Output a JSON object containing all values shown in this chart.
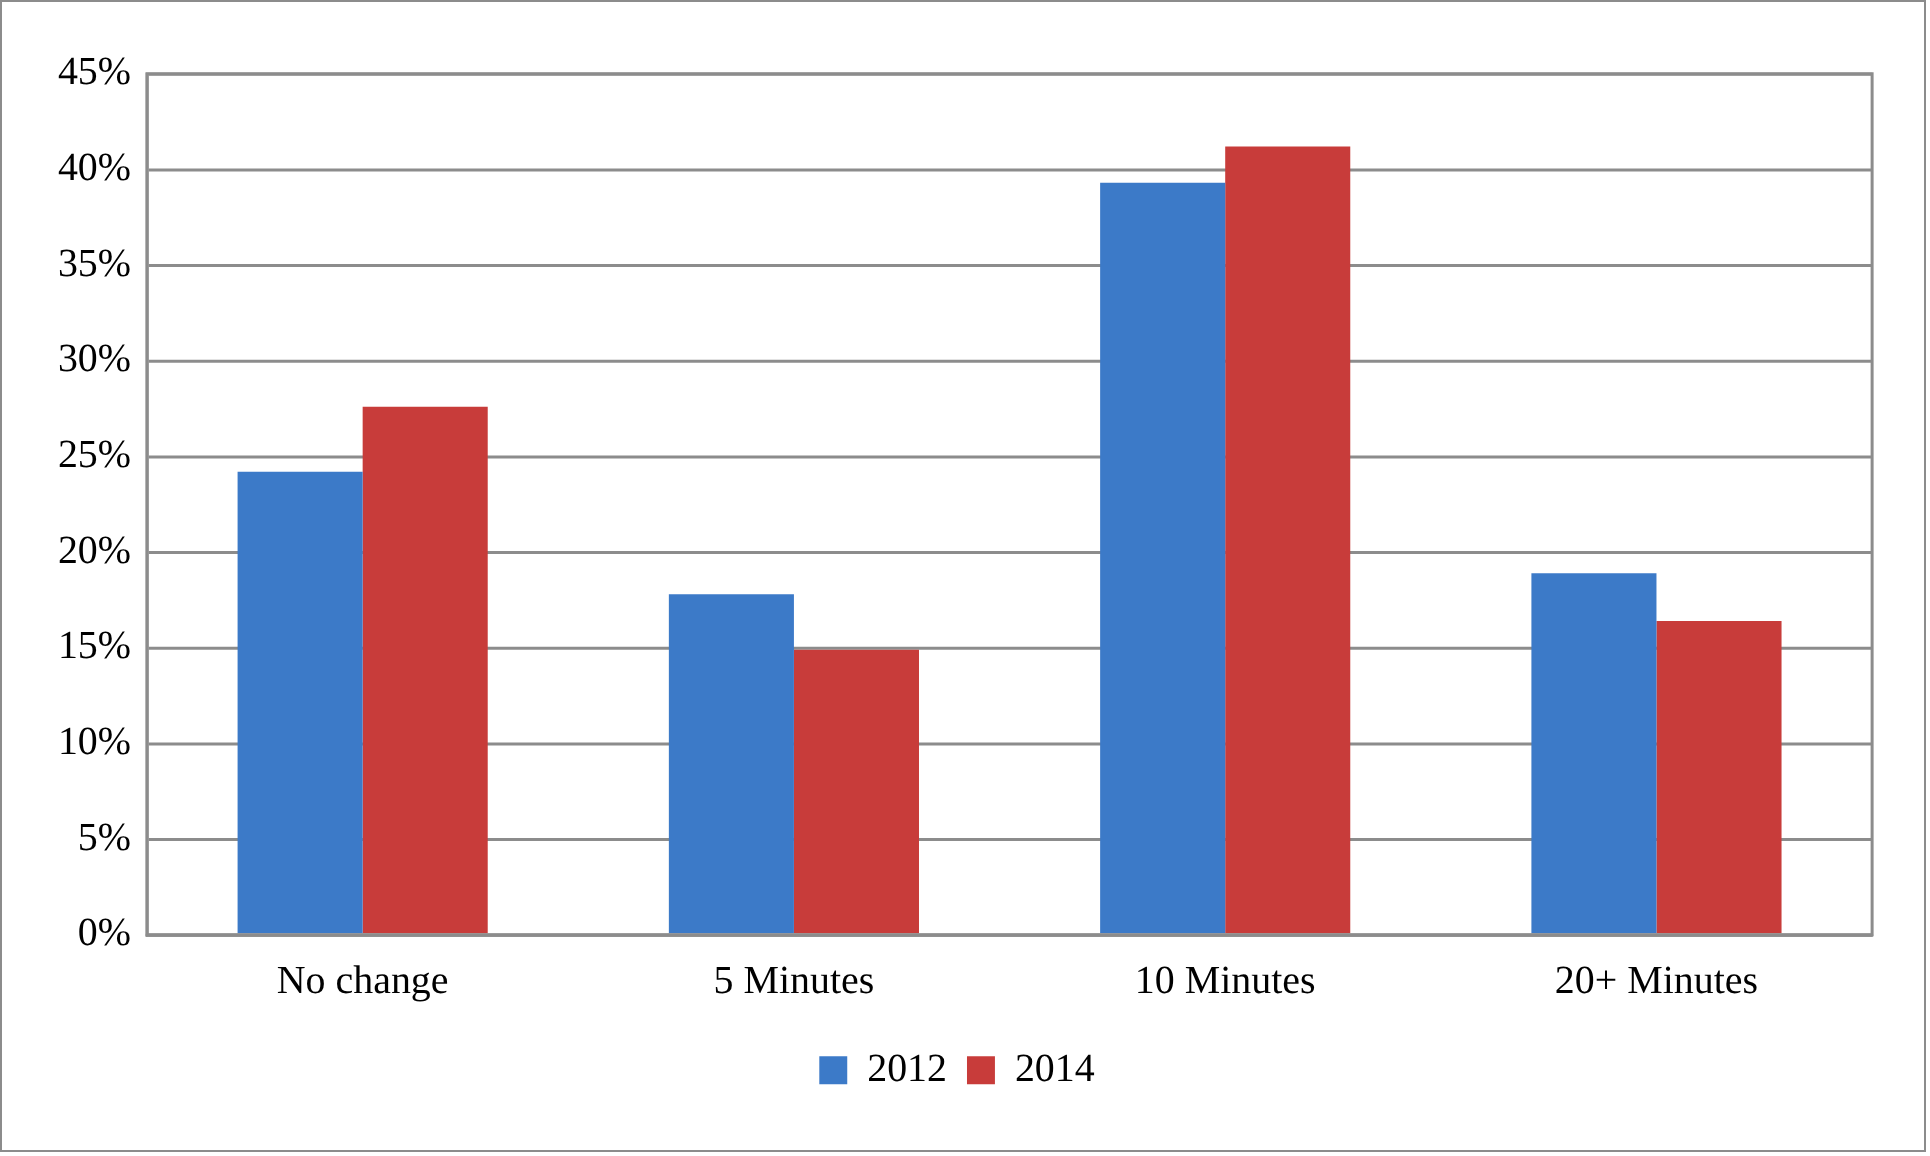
{
  "chart_data": {
    "type": "bar",
    "categories": [
      "No change",
      "5 Minutes",
      "10 Minutes",
      "20+ Minutes"
    ],
    "series": [
      {
        "name": "2012",
        "color": "#3c7ac8",
        "values": [
          24.2,
          17.8,
          39.3,
          18.9
        ]
      },
      {
        "name": "2014",
        "color": "#c83c3a",
        "values": [
          27.6,
          14.9,
          41.2,
          16.4
        ]
      }
    ],
    "ylim": [
      0,
      45
    ],
    "yticks": [
      {
        "value": 0,
        "label": "0%"
      },
      {
        "value": 5,
        "label": "5%"
      },
      {
        "value": 10,
        "label": "10%"
      },
      {
        "value": 15,
        "label": "15%"
      },
      {
        "value": 20,
        "label": "20%"
      },
      {
        "value": 25,
        "label": "25%"
      },
      {
        "value": 30,
        "label": "30%"
      },
      {
        "value": 35,
        "label": "35%"
      },
      {
        "value": 40,
        "label": "40%"
      },
      {
        "value": 45,
        "label": "45%"
      }
    ],
    "grid": "y",
    "legend": "bottom"
  }
}
